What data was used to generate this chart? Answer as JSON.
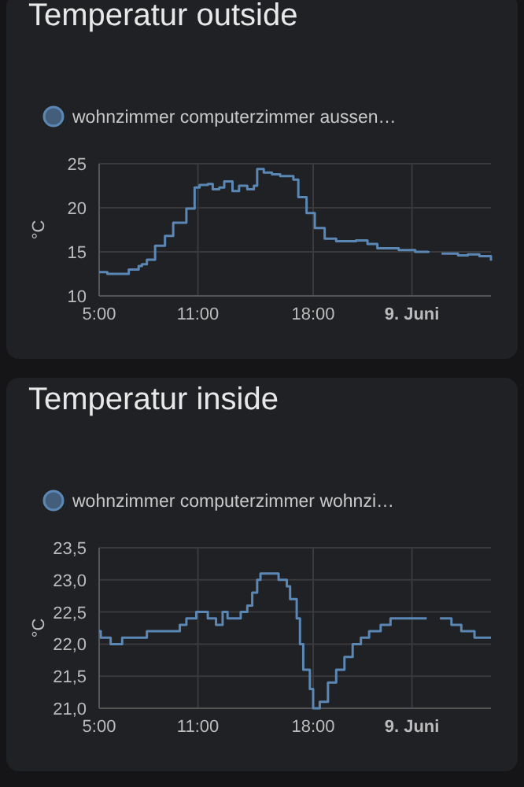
{
  "chart_data": [
    {
      "type": "step",
      "title": "Temperatur outside",
      "ylabel": "°C",
      "legend": "top left",
      "grid": true,
      "xlim": [
        5,
        28.8
      ],
      "xticks": [
        {
          "value": 5,
          "label": "5:00"
        },
        {
          "value": 11,
          "label": "11:00"
        },
        {
          "value": 18,
          "label": "18:00"
        },
        {
          "value": 24,
          "label": "9. Juni"
        }
      ],
      "ylim": [
        10,
        25
      ],
      "yticks": [
        10,
        15,
        20,
        25
      ],
      "series": [
        {
          "name": "wohnzimmer computerzimmer aussen…",
          "color": "#5b87b5",
          "x": [
            5,
            5.5,
            6.3,
            6.8,
            7.4,
            7.6,
            7.9,
            8.4,
            9.0,
            9.5,
            10.3,
            10.8,
            11.1,
            11.6,
            11.9,
            12.3,
            12.6,
            13.1,
            13.5,
            14.0,
            14.4,
            14.6,
            15.0,
            15.5,
            16.0,
            16.8,
            17.1,
            17.6,
            18.1,
            18.7,
            19.4,
            20.6,
            21.3,
            21.9,
            23.2,
            24.2,
            25.0,
            25.4,
            25.8,
            26.8,
            27.4,
            28.1,
            28.8
          ],
          "values": [
            12.7,
            12.5,
            12.5,
            13.0,
            13.4,
            13.6,
            14.1,
            15.7,
            16.8,
            18.3,
            19.9,
            22.3,
            22.6,
            22.7,
            22.1,
            22.3,
            23.0,
            21.9,
            22.5,
            22.1,
            22.5,
            24.4,
            24.0,
            23.8,
            23.6,
            23.2,
            21.2,
            19.4,
            17.7,
            16.5,
            16.2,
            16.3,
            15.9,
            15.4,
            15.2,
            15.0,
            15.1,
            null,
            14.8,
            14.6,
            14.7,
            14.5,
            14.0
          ]
        }
      ]
    },
    {
      "type": "step",
      "title": "Temperatur inside",
      "ylabel": "°C",
      "legend": "top left",
      "grid": true,
      "xlim": [
        5,
        28.8
      ],
      "xticks": [
        {
          "value": 5,
          "label": "5:00"
        },
        {
          "value": 11,
          "label": "11:00"
        },
        {
          "value": 18,
          "label": "18:00"
        },
        {
          "value": 24,
          "label": "9. Juni"
        }
      ],
      "ylim": [
        21,
        23.5
      ],
      "yticks": [
        {
          "value": 21,
          "label": "21,0"
        },
        {
          "value": 21.5,
          "label": "21,5"
        },
        {
          "value": 22,
          "label": "22,0"
        },
        {
          "value": 22.5,
          "label": "22,5"
        },
        {
          "value": 23,
          "label": "23,0"
        },
        {
          "value": 23.5,
          "label": "23,5"
        }
      ],
      "series": [
        {
          "name": "wohnzimmer computerzimmer wohnzi…",
          "color": "#5b87b5",
          "x": [
            5,
            5.1,
            5.7,
            6.4,
            7.9,
            9.9,
            10.3,
            10.9,
            11.6,
            12.1,
            12.5,
            12.8,
            13.6,
            14.0,
            14.3,
            14.6,
            14.8,
            15.9,
            16.4,
            16.6,
            17.0,
            17.2,
            17.4,
            17.8,
            18.0,
            18.4,
            18.9,
            19.4,
            19.9,
            20.4,
            20.9,
            21.4,
            22.1,
            22.7,
            24.9,
            25.3,
            25.7,
            26.4,
            27.0,
            27.8,
            28.8
          ],
          "values": [
            22.2,
            22.1,
            22.0,
            22.1,
            22.2,
            22.3,
            22.4,
            22.5,
            22.4,
            22.3,
            22.5,
            22.4,
            22.5,
            22.6,
            22.8,
            23.0,
            23.1,
            23.0,
            22.9,
            22.7,
            22.4,
            22.0,
            21.6,
            21.3,
            21.0,
            21.1,
            21.4,
            21.6,
            21.8,
            22.0,
            22.1,
            22.2,
            22.3,
            22.4,
            22.4,
            null,
            22.4,
            22.3,
            22.2,
            22.1,
            22.1
          ]
        }
      ]
    }
  ]
}
